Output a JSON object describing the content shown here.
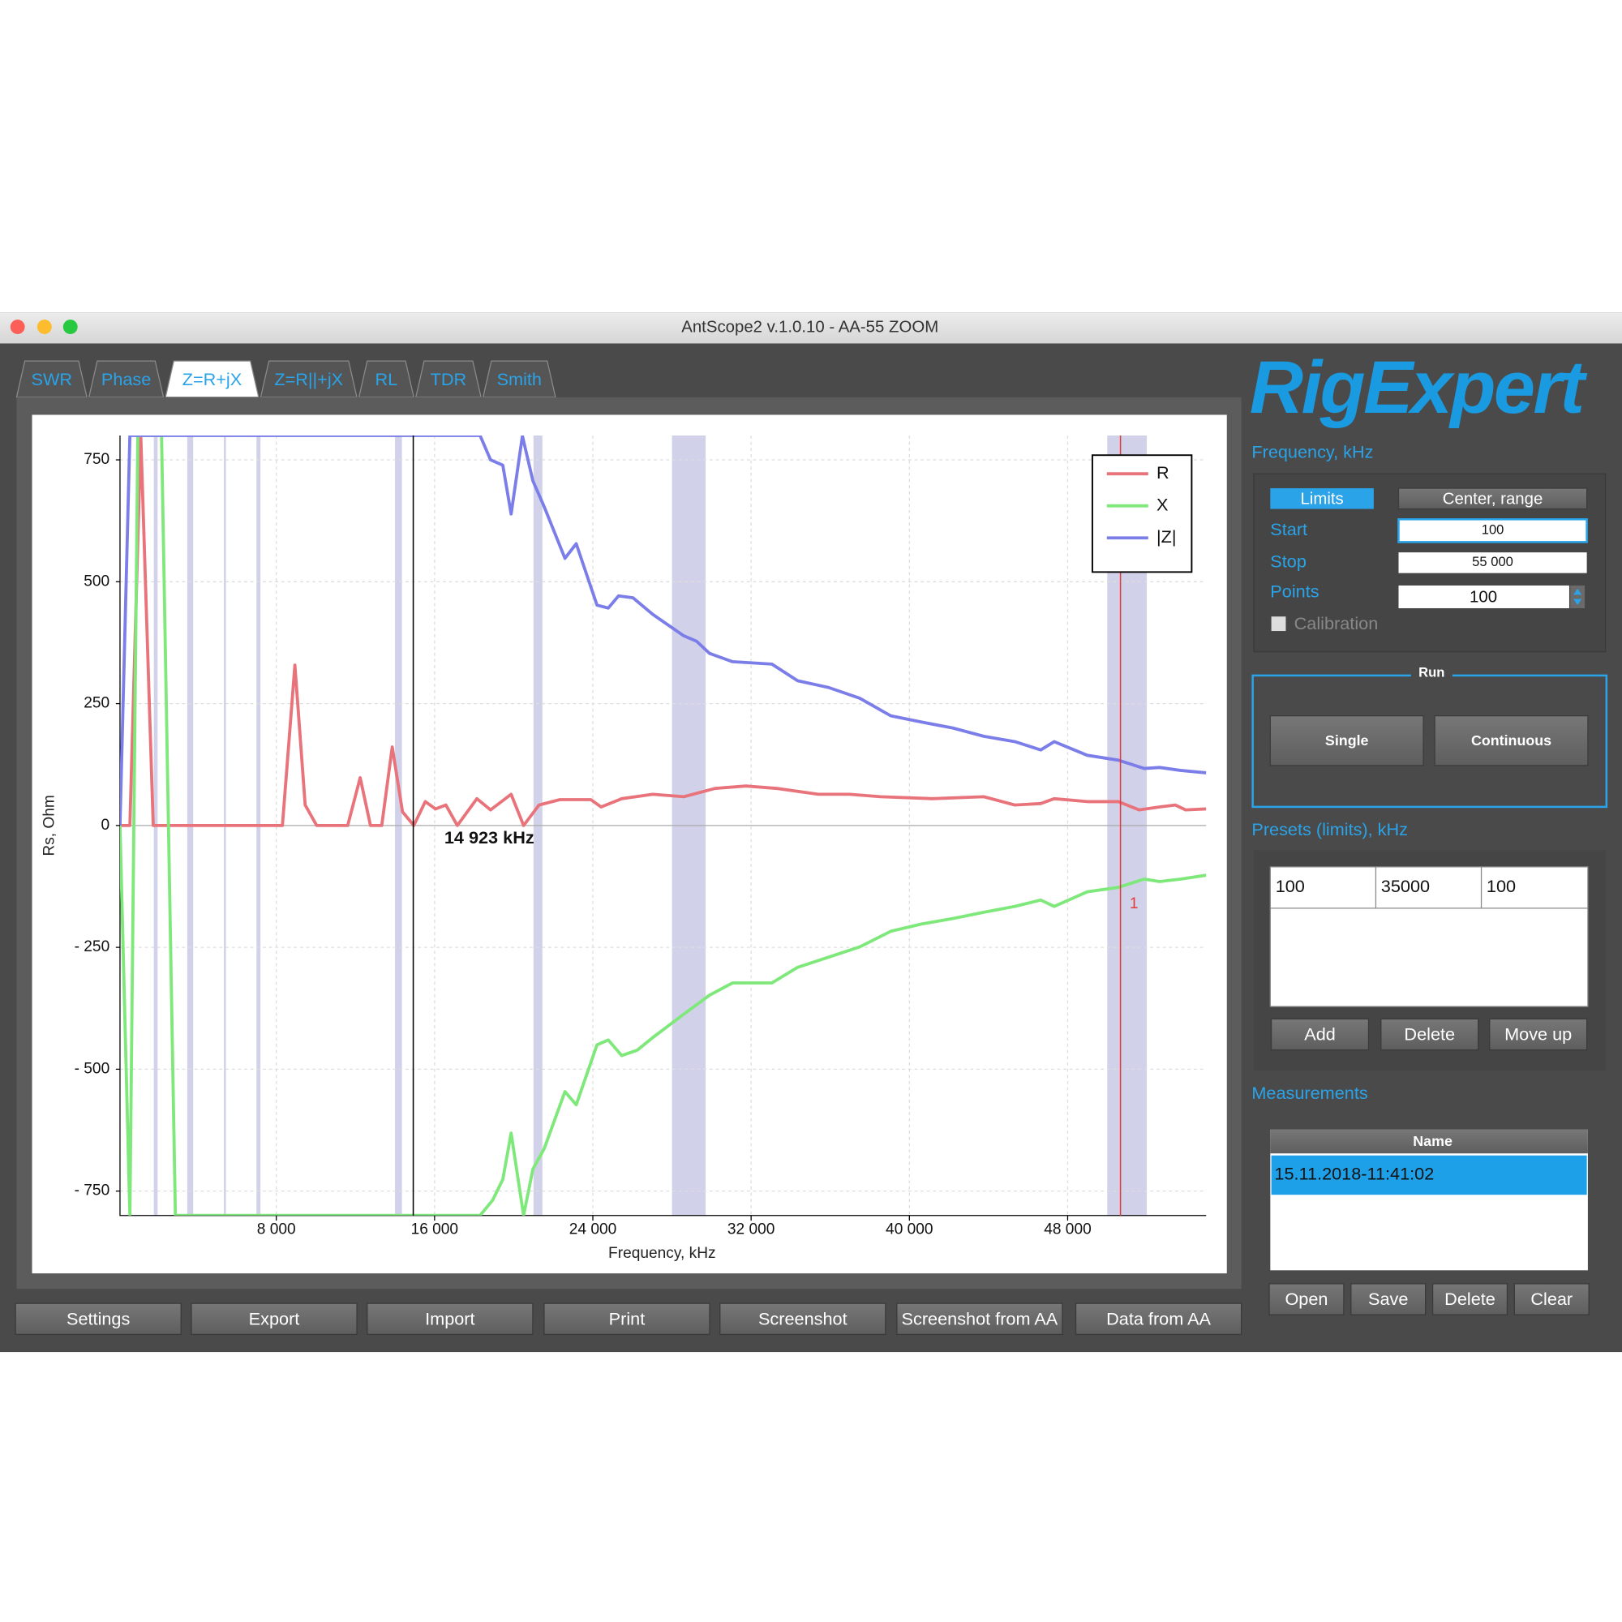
{
  "window": {
    "title": "AntScope2 v.1.0.10 - AA-55 ZOOM"
  },
  "tabs": [
    "SWR",
    "Phase",
    "Z=R+jX",
    "Z=R||+jX",
    "RL",
    "TDR",
    "Smith"
  ],
  "chart_data": {
    "type": "line",
    "xlabel": "Frequency, kHz",
    "ylabel": "Rs, Ohm",
    "xlim": [
      100,
      55000
    ],
    "ylim": [
      -800,
      800
    ],
    "xticks": [
      {
        "value": 8000,
        "label": "8 000"
      },
      {
        "value": 16000,
        "label": "16 000"
      },
      {
        "value": 24000,
        "label": "24 000"
      },
      {
        "value": 32000,
        "label": "32 000"
      },
      {
        "value": 40000,
        "label": "40 000"
      },
      {
        "value": 48000,
        "label": "48 000"
      }
    ],
    "yticks": [
      {
        "value": -750,
        "label": "- 750"
      },
      {
        "value": -500,
        "label": "- 500"
      },
      {
        "value": -250,
        "label": "- 250"
      },
      0,
      250,
      500,
      750
    ],
    "grid": true,
    "legend": "upper right",
    "bands": [
      {
        "from": 1810,
        "to": 2000
      },
      {
        "from": 3500,
        "to": 3800
      },
      {
        "from": 5350,
        "to": 5450
      },
      {
        "from": 7000,
        "to": 7200
      },
      {
        "from": 14000,
        "to": 14350
      },
      {
        "from": 21000,
        "to": 21450
      },
      {
        "from": 28000,
        "to": 29700
      },
      {
        "from": 50000,
        "to": 52000
      }
    ],
    "cursor": {
      "x": 14923,
      "label": "14 923 kHz"
    },
    "marker": {
      "x": 50670,
      "label": "1"
    },
    "series": [
      {
        "name": "R",
        "color": "#e8737a",
        "x": [
          150,
          600,
          1150,
          1780,
          8310,
          8940,
          9460,
          10040,
          11610,
          12240,
          12760,
          13330,
          13860,
          14380,
          14950,
          15530,
          16050,
          16570,
          17150,
          18140,
          18830,
          19870,
          20500,
          21280,
          22330,
          23900,
          24420,
          25460,
          27030,
          28600,
          30170,
          31740,
          33310,
          35400,
          36970,
          38540,
          41150,
          43760,
          45330,
          46640,
          47320,
          48990,
          50560,
          51610,
          52650,
          53440,
          53960,
          55000
        ],
        "values": [
          0,
          0,
          800,
          0,
          0,
          329,
          42,
          0,
          0,
          98,
          0,
          0,
          161,
          28,
          0,
          49,
          34,
          42,
          0,
          55,
          32,
          64,
          0,
          42,
          53,
          53,
          38,
          55,
          64,
          59,
          76,
          81,
          76,
          64,
          64,
          59,
          55,
          59,
          42,
          45,
          55,
          49,
          49,
          32,
          38,
          42,
          32,
          34
        ]
      },
      {
        "name": "X",
        "color": "#7ee87a",
        "x": [
          100,
          600,
          1000,
          2200,
          2900,
          18300,
          18930,
          19450,
          19870,
          20500,
          20970,
          21540,
          22590,
          23160,
          24210,
          24780,
          25460,
          26240,
          27030,
          28600,
          29900,
          31060,
          33050,
          34350,
          35920,
          37490,
          39060,
          40630,
          42190,
          43760,
          45330,
          46640,
          47320,
          48990,
          50560,
          51870,
          52650,
          53700,
          55000
        ],
        "values": [
          0,
          -800,
          800,
          800,
          -800,
          -800,
          -769,
          -726,
          -631,
          -800,
          -705,
          -663,
          -546,
          -573,
          -450,
          -440,
          -472,
          -461,
          -435,
          -387,
          -348,
          -323,
          -323,
          -291,
          -270,
          -249,
          -217,
          -202,
          -191,
          -178,
          -166,
          -153,
          -166,
          -136,
          -127,
          -110,
          -115,
          -110,
          -102
        ]
      },
      {
        "name": "|Z|",
        "color": "#7b7de8",
        "x": [
          100,
          600,
          18300,
          18830,
          19450,
          19870,
          20440,
          20970,
          21540,
          22590,
          23160,
          24210,
          24780,
          25300,
          26030,
          27030,
          28600,
          29240,
          29900,
          31060,
          33050,
          34350,
          35920,
          37490,
          39060,
          40630,
          42190,
          43760,
          45330,
          46640,
          47320,
          48990,
          50560,
          51870,
          52650,
          53700,
          55000
        ],
        "values": [
          0,
          800,
          800,
          750,
          739,
          639,
          799,
          707,
          654,
          548,
          578,
          452,
          446,
          471,
          467,
          433,
          389,
          378,
          353,
          336,
          331,
          297,
          283,
          261,
          225,
          212,
          200,
          183,
          172,
          155,
          172,
          144,
          134,
          117,
          119,
          113,
          108
        ]
      }
    ]
  },
  "sidebar": {
    "logo": "RigExpert",
    "frequency": {
      "title": "Frequency, kHz",
      "modes": [
        "Limits",
        "Center, range"
      ],
      "start_label": "Start",
      "start": "100",
      "stop_label": "Stop",
      "stop": "55 000",
      "points_label": "Points",
      "points": "100",
      "calibration": "Calibration"
    },
    "run": {
      "title": "Run",
      "buttons": [
        "Single",
        "Continuous"
      ]
    },
    "presets": {
      "title": "Presets (limits), kHz",
      "rows": [
        [
          "100",
          "35000",
          "100"
        ]
      ],
      "buttons": [
        "Add",
        "Delete",
        "Move up"
      ]
    },
    "measurements": {
      "title": "Measurements",
      "header": "Name",
      "rows": [
        "15.11.2018-11:41:02"
      ],
      "buttons": [
        "Open",
        "Save",
        "Delete",
        "Clear"
      ]
    }
  },
  "toolbar": [
    "Settings",
    "Export",
    "Import",
    "Print",
    "Screenshot",
    "Screenshot from AA",
    "Data from AA"
  ]
}
